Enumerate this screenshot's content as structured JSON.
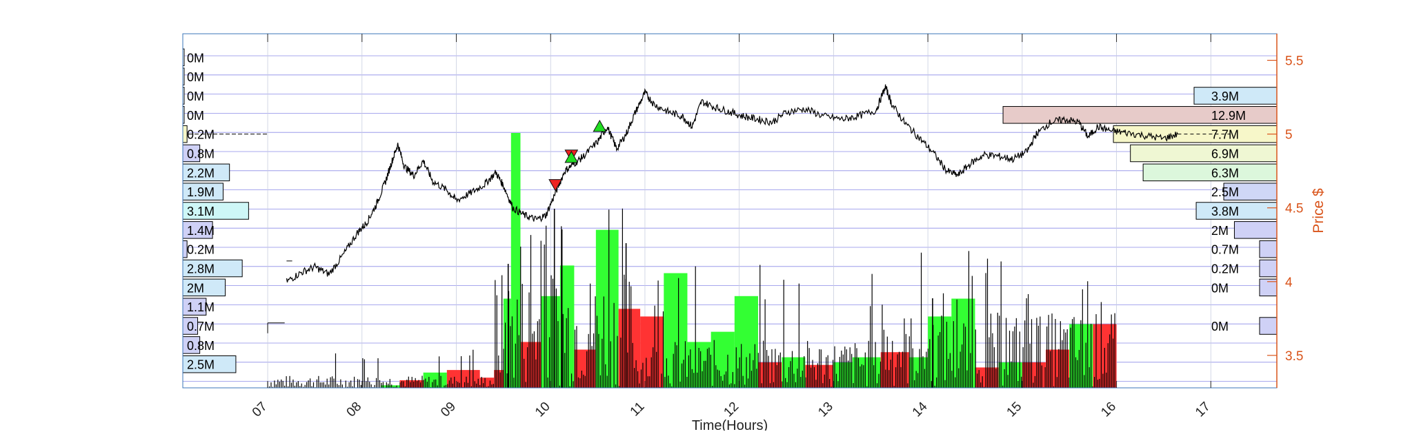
{
  "chart_data": {
    "type": "line",
    "xlabel": "Time(Hours)",
    "ylabel": "Price $",
    "xlim": [
      6.1,
      17.7
    ],
    "ylim": [
      3.28,
      5.68
    ],
    "x_ticks": [
      "07",
      "08",
      "09",
      "10",
      "11",
      "12",
      "13",
      "14",
      "15",
      "16",
      "17"
    ],
    "y_ticks": [
      "3.5",
      "4",
      "4.5",
      "5",
      "5.5"
    ],
    "grid": true,
    "price_series": [
      [
        7.2,
        4.0
      ],
      [
        7.35,
        4.06
      ],
      [
        7.5,
        4.1
      ],
      [
        7.65,
        4.05
      ],
      [
        7.8,
        4.18
      ],
      [
        7.95,
        4.33
      ],
      [
        8.05,
        4.4
      ],
      [
        8.15,
        4.52
      ],
      [
        8.25,
        4.68
      ],
      [
        8.32,
        4.82
      ],
      [
        8.38,
        4.93
      ],
      [
        8.45,
        4.78
      ],
      [
        8.55,
        4.72
      ],
      [
        8.65,
        4.82
      ],
      [
        8.75,
        4.68
      ],
      [
        8.9,
        4.62
      ],
      [
        9.0,
        4.55
      ],
      [
        9.15,
        4.6
      ],
      [
        9.3,
        4.66
      ],
      [
        9.42,
        4.74
      ],
      [
        9.5,
        4.65
      ],
      [
        9.6,
        4.5
      ],
      [
        9.72,
        4.45
      ],
      [
        9.85,
        4.42
      ],
      [
        9.95,
        4.45
      ],
      [
        10.05,
        4.6
      ],
      [
        10.15,
        4.75
      ],
      [
        10.25,
        4.8
      ],
      [
        10.35,
        4.85
      ],
      [
        10.5,
        4.95
      ],
      [
        10.6,
        5.05
      ],
      [
        10.7,
        4.9
      ],
      [
        10.8,
        5.0
      ],
      [
        10.9,
        5.15
      ],
      [
        11.0,
        5.28
      ],
      [
        11.1,
        5.2
      ],
      [
        11.25,
        5.15
      ],
      [
        11.4,
        5.12
      ],
      [
        11.5,
        5.05
      ],
      [
        11.6,
        5.22
      ],
      [
        11.75,
        5.18
      ],
      [
        11.9,
        5.15
      ],
      [
        12.05,
        5.12
      ],
      [
        12.2,
        5.1
      ],
      [
        12.35,
        5.08
      ],
      [
        12.5,
        5.15
      ],
      [
        12.7,
        5.17
      ],
      [
        12.9,
        5.12
      ],
      [
        13.1,
        5.1
      ],
      [
        13.25,
        5.12
      ],
      [
        13.45,
        5.16
      ],
      [
        13.55,
        5.32
      ],
      [
        13.62,
        5.2
      ],
      [
        13.75,
        5.08
      ],
      [
        13.9,
        4.98
      ],
      [
        14.05,
        4.88
      ],
      [
        14.2,
        4.75
      ],
      [
        14.32,
        4.72
      ],
      [
        14.45,
        4.8
      ],
      [
        14.6,
        4.86
      ],
      [
        14.75,
        4.85
      ],
      [
        14.9,
        4.83
      ],
      [
        15.05,
        4.88
      ],
      [
        15.15,
        5.0
      ],
      [
        15.3,
        5.08
      ],
      [
        15.45,
        5.1
      ],
      [
        15.6,
        5.08
      ],
      [
        15.7,
        4.98
      ],
      [
        15.8,
        5.05
      ],
      [
        15.95,
        5.02
      ],
      [
        16.1,
        5.01
      ],
      [
        16.3,
        4.99
      ],
      [
        16.5,
        4.97
      ],
      [
        16.65,
        5.0
      ]
    ],
    "trades": [
      {
        "x": 10.05,
        "y": 4.65,
        "side": "sell"
      },
      {
        "x": 10.22,
        "y": 4.85,
        "side": "sell"
      },
      {
        "x": 10.22,
        "y": 4.84,
        "side": "buy"
      },
      {
        "x": 10.52,
        "y": 5.05,
        "side": "buy"
      }
    ],
    "volume_bars": [
      {
        "x0": 8.2,
        "x1": 8.4,
        "v": 0.01,
        "c": "green"
      },
      {
        "x0": 8.4,
        "x1": 8.65,
        "v": 0.03,
        "c": "red"
      },
      {
        "x0": 8.65,
        "x1": 8.9,
        "v": 0.06,
        "c": "green"
      },
      {
        "x0": 8.9,
        "x1": 9.25,
        "v": 0.07,
        "c": "red"
      },
      {
        "x0": 9.25,
        "x1": 9.4,
        "v": 0.04,
        "c": "red"
      },
      {
        "x0": 9.4,
        "x1": 9.5,
        "v": 0.07,
        "c": "red"
      },
      {
        "x0": 9.5,
        "x1": 9.58,
        "v": 0.35,
        "c": "green"
      },
      {
        "x0": 9.58,
        "x1": 9.68,
        "v": 1.0,
        "c": "green"
      },
      {
        "x0": 9.68,
        "x1": 9.9,
        "v": 0.18,
        "c": "red"
      },
      {
        "x0": 9.9,
        "x1": 10.1,
        "v": 0.36,
        "c": "green"
      },
      {
        "x0": 10.1,
        "x1": 10.25,
        "v": 0.48,
        "c": "green"
      },
      {
        "x0": 10.25,
        "x1": 10.48,
        "v": 0.15,
        "c": "red"
      },
      {
        "x0": 10.48,
        "x1": 10.72,
        "v": 0.62,
        "c": "green"
      },
      {
        "x0": 10.72,
        "x1": 10.95,
        "v": 0.31,
        "c": "red"
      },
      {
        "x0": 10.95,
        "x1": 11.2,
        "v": 0.28,
        "c": "red"
      },
      {
        "x0": 11.2,
        "x1": 11.45,
        "v": 0.45,
        "c": "green"
      },
      {
        "x0": 11.45,
        "x1": 11.7,
        "v": 0.18,
        "c": "green"
      },
      {
        "x0": 11.7,
        "x1": 11.95,
        "v": 0.22,
        "c": "green"
      },
      {
        "x0": 11.95,
        "x1": 12.2,
        "v": 0.36,
        "c": "green"
      },
      {
        "x0": 12.2,
        "x1": 12.45,
        "v": 0.1,
        "c": "red"
      },
      {
        "x0": 12.45,
        "x1": 12.7,
        "v": 0.12,
        "c": "green"
      },
      {
        "x0": 12.7,
        "x1": 13.0,
        "v": 0.09,
        "c": "red"
      },
      {
        "x0": 13.0,
        "x1": 13.2,
        "v": 0.1,
        "c": "green"
      },
      {
        "x0": 13.2,
        "x1": 13.5,
        "v": 0.12,
        "c": "green"
      },
      {
        "x0": 13.5,
        "x1": 13.8,
        "v": 0.14,
        "c": "red"
      },
      {
        "x0": 13.8,
        "x1": 14.0,
        "v": 0.12,
        "c": "green"
      },
      {
        "x0": 14.0,
        "x1": 14.25,
        "v": 0.28,
        "c": "green"
      },
      {
        "x0": 14.25,
        "x1": 14.5,
        "v": 0.35,
        "c": "green"
      },
      {
        "x0": 14.5,
        "x1": 14.75,
        "v": 0.08,
        "c": "red"
      },
      {
        "x0": 14.75,
        "x1": 15.0,
        "v": 0.1,
        "c": "green"
      },
      {
        "x0": 15.0,
        "x1": 15.25,
        "v": 0.1,
        "c": "red"
      },
      {
        "x0": 15.25,
        "x1": 15.5,
        "v": 0.15,
        "c": "red"
      },
      {
        "x0": 15.5,
        "x1": 15.75,
        "v": 0.25,
        "c": "green"
      },
      {
        "x0": 15.75,
        "x1": 16.0,
        "v": 0.25,
        "c": "red"
      }
    ],
    "left_profile": [
      {
        "price": 5.52,
        "label": "0M",
        "v": 0.0,
        "color": "#ffffff"
      },
      {
        "price": 5.39,
        "label": "0M",
        "v": 0.0,
        "color": "#ffffff"
      },
      {
        "price": 5.26,
        "label": "0M",
        "v": 0.0,
        "color": "#ffffff"
      },
      {
        "price": 5.13,
        "label": "0M",
        "v": 0.0,
        "color": "#ffffff"
      },
      {
        "price": 5.0,
        "label": "0.2M",
        "v": 0.2,
        "color": "#f7f7c9"
      },
      {
        "price": 4.87,
        "label": "0.8M",
        "v": 0.8,
        "color": "#cfd1f6"
      },
      {
        "price": 4.74,
        "label": "2.2M",
        "v": 2.2,
        "color": "#cfe9f8"
      },
      {
        "price": 4.61,
        "label": "1.9M",
        "v": 1.9,
        "color": "#cfe9f8"
      },
      {
        "price": 4.48,
        "label": "3.1M",
        "v": 3.1,
        "color": "#cef7f7"
      },
      {
        "price": 4.35,
        "label": "1.4M",
        "v": 1.4,
        "color": "#cfd1f6"
      },
      {
        "price": 4.22,
        "label": "0.2M",
        "v": 0.2,
        "color": "#cfd1f6"
      },
      {
        "price": 4.09,
        "label": "2.8M",
        "v": 2.8,
        "color": "#cfe9f8"
      },
      {
        "price": 3.96,
        "label": "2M",
        "v": 2.0,
        "color": "#cfe9f8"
      },
      {
        "price": 3.83,
        "label": "1.1M",
        "v": 1.1,
        "color": "#cfd1f6"
      },
      {
        "price": 3.7,
        "label": "0.7M",
        "v": 0.7,
        "color": "#cfd1f6"
      },
      {
        "price": 3.57,
        "label": "0.8M",
        "v": 0.8,
        "color": "#cfd1f6"
      },
      {
        "price": 3.44,
        "label": "2.5M",
        "v": 2.5,
        "color": "#cfe9f8"
      }
    ],
    "right_profile": [
      {
        "price": 5.26,
        "label": "3.9M",
        "v": 3.9,
        "color": "#cfe9f8"
      },
      {
        "price": 5.13,
        "label": "12.9M",
        "v": 12.9,
        "color": "#e7cbc9"
      },
      {
        "price": 5.0,
        "label": "7.7M",
        "v": 7.7,
        "color": "#f7f7c9"
      },
      {
        "price": 4.87,
        "label": "6.9M",
        "v": 6.9,
        "color": "#eff7d3"
      },
      {
        "price": 4.74,
        "label": "6.3M",
        "v": 6.3,
        "color": "#dcf7dc"
      },
      {
        "price": 4.61,
        "label": "2.5M",
        "v": 2.5,
        "color": "#cfd7f6"
      },
      {
        "price": 4.48,
        "label": "3.8M",
        "v": 3.8,
        "color": "#cfe9f8"
      },
      {
        "price": 4.35,
        "label": "2M",
        "v": 2.0,
        "color": "#cfd1f6"
      },
      {
        "price": 4.22,
        "label": "0.7M",
        "v": 0.7,
        "color": "#cfd1f6"
      },
      {
        "price": 4.09,
        "label": "0.2M",
        "v": 0.2,
        "color": "#cfd1f6"
      },
      {
        "price": 3.96,
        "label": "0M",
        "v": 0.0,
        "color": "#cfd1f6"
      },
      {
        "price": 3.7,
        "label": "0M",
        "v": 0.0,
        "color": "#cfd1f6"
      }
    ],
    "colors": {
      "price": "#000000",
      "buy_volume": "#33ff33",
      "sell_volume": "#ff3333",
      "grid": "#8a8ae8",
      "right_axis": "#d95319",
      "buy_marker": "#22dd22",
      "sell_marker": "#ee2222"
    }
  }
}
